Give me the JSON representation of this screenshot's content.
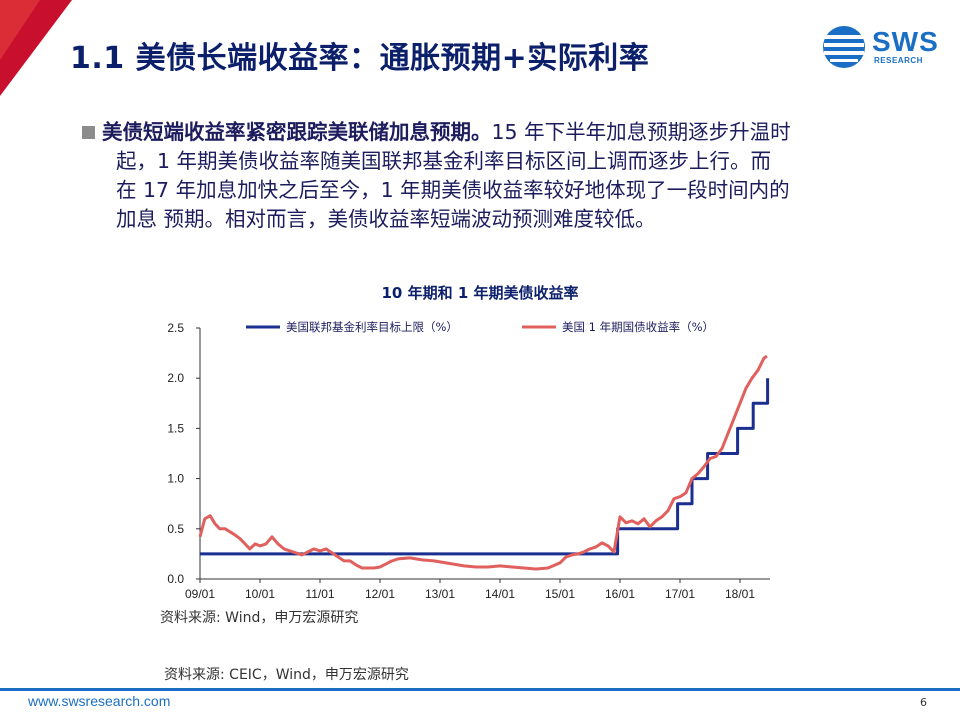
{
  "header": {
    "title": "1.1 美债长端收益率：通胀预期+实际利率",
    "logo_text": "SWS",
    "logo_sub": "RESEARCH"
  },
  "body": {
    "lead": "美债短端收益率紧密跟踪美联储加息预期。",
    "line1_rest": "15 年下半年加息预期逐步升温时",
    "line2": "起，1 年期美债收益率随美国联邦基金利率目标区间上调而逐步上行。而",
    "line3": "在 17 年加息加快之后至今，1 年期美债收益率较好地体现了一段时间内的",
    "line4": "加息 预期。相对而言，美债收益率短端波动预测难度较低。"
  },
  "chart_data": {
    "type": "line",
    "title": "10 年期和 1 年期美债收益率",
    "xlabel": "",
    "ylabel": "",
    "ylim": [
      0,
      2.5
    ],
    "yticks": [
      "0.0",
      "0.5",
      "1.0",
      "1.5",
      "2.0",
      "2.5"
    ],
    "xticks": [
      "09/01",
      "10/01",
      "11/01",
      "12/01",
      "13/01",
      "14/01",
      "15/01",
      "16/01",
      "17/01",
      "18/01"
    ],
    "xlim": [
      2009.0,
      2018.5
    ],
    "legend_position": "top",
    "series": [
      {
        "name": "美国联邦基金利率目标上限（%）",
        "color": "#1a2f8f",
        "step": true,
        "points": [
          [
            2009.0,
            0.25
          ],
          [
            2015.96,
            0.25
          ],
          [
            2015.96,
            0.5
          ],
          [
            2016.96,
            0.5
          ],
          [
            2016.96,
            0.75
          ],
          [
            2017.2,
            0.75
          ],
          [
            2017.2,
            1.0
          ],
          [
            2017.46,
            1.0
          ],
          [
            2017.46,
            1.25
          ],
          [
            2017.96,
            1.25
          ],
          [
            2017.96,
            1.5
          ],
          [
            2018.22,
            1.5
          ],
          [
            2018.22,
            1.75
          ],
          [
            2018.46,
            1.75
          ],
          [
            2018.46,
            2.0
          ]
        ]
      },
      {
        "name": "美国 1 年期国债收益率（%）",
        "color": "#e0605e",
        "step": false,
        "points": [
          [
            2009.0,
            0.42
          ],
          [
            2009.08,
            0.6
          ],
          [
            2009.17,
            0.63
          ],
          [
            2009.25,
            0.55
          ],
          [
            2009.33,
            0.5
          ],
          [
            2009.42,
            0.5
          ],
          [
            2009.5,
            0.47
          ],
          [
            2009.58,
            0.44
          ],
          [
            2009.67,
            0.4
          ],
          [
            2009.75,
            0.35
          ],
          [
            2009.83,
            0.3
          ],
          [
            2009.92,
            0.35
          ],
          [
            2010.0,
            0.33
          ],
          [
            2010.1,
            0.35
          ],
          [
            2010.2,
            0.42
          ],
          [
            2010.3,
            0.35
          ],
          [
            2010.4,
            0.3
          ],
          [
            2010.5,
            0.28
          ],
          [
            2010.6,
            0.26
          ],
          [
            2010.7,
            0.24
          ],
          [
            2010.8,
            0.27
          ],
          [
            2010.9,
            0.3
          ],
          [
            2011.0,
            0.28
          ],
          [
            2011.1,
            0.3
          ],
          [
            2011.2,
            0.26
          ],
          [
            2011.3,
            0.22
          ],
          [
            2011.4,
            0.18
          ],
          [
            2011.5,
            0.18
          ],
          [
            2011.6,
            0.14
          ],
          [
            2011.7,
            0.11
          ],
          [
            2011.8,
            0.11
          ],
          [
            2011.9,
            0.11
          ],
          [
            2012.0,
            0.12
          ],
          [
            2012.1,
            0.15
          ],
          [
            2012.2,
            0.18
          ],
          [
            2012.3,
            0.2
          ],
          [
            2012.5,
            0.21
          ],
          [
            2012.7,
            0.19
          ],
          [
            2012.9,
            0.18
          ],
          [
            2013.0,
            0.17
          ],
          [
            2013.2,
            0.15
          ],
          [
            2013.4,
            0.13
          ],
          [
            2013.6,
            0.12
          ],
          [
            2013.8,
            0.12
          ],
          [
            2014.0,
            0.13
          ],
          [
            2014.2,
            0.12
          ],
          [
            2014.4,
            0.11
          ],
          [
            2014.6,
            0.1
          ],
          [
            2014.8,
            0.11
          ],
          [
            2015.0,
            0.16
          ],
          [
            2015.1,
            0.22
          ],
          [
            2015.2,
            0.24
          ],
          [
            2015.3,
            0.25
          ],
          [
            2015.4,
            0.27
          ],
          [
            2015.5,
            0.3
          ],
          [
            2015.6,
            0.32
          ],
          [
            2015.7,
            0.36
          ],
          [
            2015.8,
            0.33
          ],
          [
            2015.9,
            0.27
          ],
          [
            2016.0,
            0.62
          ],
          [
            2016.1,
            0.56
          ],
          [
            2016.2,
            0.58
          ],
          [
            2016.3,
            0.55
          ],
          [
            2016.4,
            0.6
          ],
          [
            2016.5,
            0.52
          ],
          [
            2016.6,
            0.58
          ],
          [
            2016.7,
            0.62
          ],
          [
            2016.8,
            0.68
          ],
          [
            2016.9,
            0.8
          ],
          [
            2017.0,
            0.82
          ],
          [
            2017.1,
            0.86
          ],
          [
            2017.2,
            1.0
          ],
          [
            2017.3,
            1.05
          ],
          [
            2017.4,
            1.12
          ],
          [
            2017.5,
            1.2
          ],
          [
            2017.6,
            1.22
          ],
          [
            2017.7,
            1.3
          ],
          [
            2017.8,
            1.45
          ],
          [
            2017.9,
            1.6
          ],
          [
            2018.0,
            1.75
          ],
          [
            2018.1,
            1.9
          ],
          [
            2018.2,
            2.0
          ],
          [
            2018.3,
            2.08
          ],
          [
            2018.4,
            2.2
          ],
          [
            2018.45,
            2.22
          ]
        ]
      }
    ]
  },
  "sources": {
    "chart": "资料来源: Wind，申万宏源研究",
    "page": "资料来源: CEIC，Wind，申万宏源研究"
  },
  "footer": {
    "url": "www.swsresearch.com",
    "page_number": "6"
  },
  "colors": {
    "title": "#0b1f6b",
    "accent_red": "#c8102e",
    "brand_blue": "#1a6fc4"
  }
}
